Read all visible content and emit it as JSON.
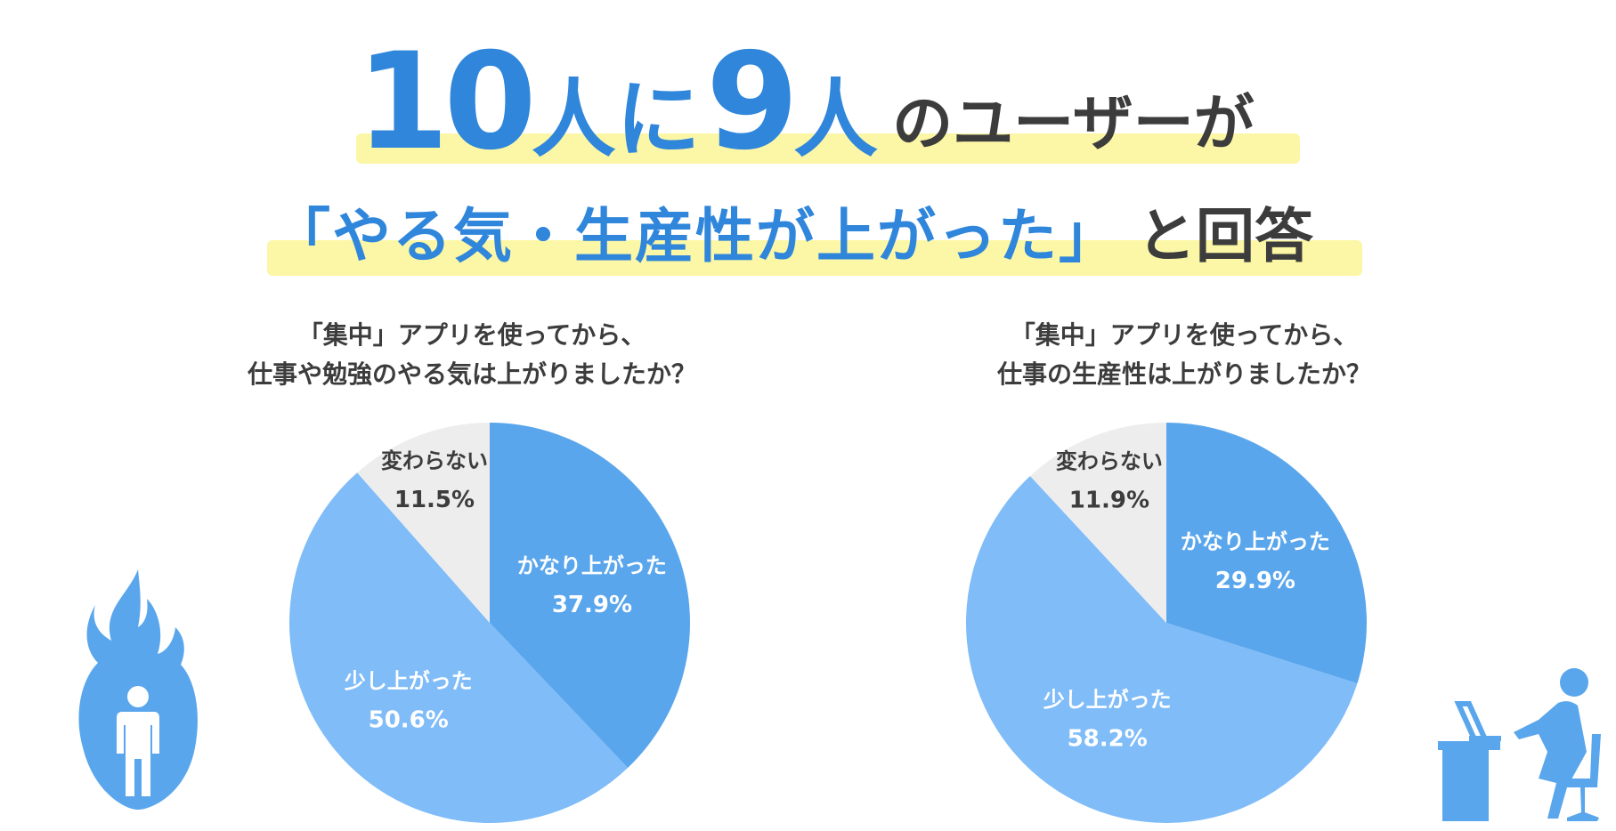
{
  "headline": {
    "num1": "10",
    "kanji1": "人に",
    "num2": "9",
    "kanji2": "人",
    "tail1": "のユーザーが",
    "quote": "「やる気・生産性が上がった」",
    "tail2": "と回答"
  },
  "colors": {
    "accent": "#2f86db",
    "slice_high": "#5aa6ec",
    "slice_mid": "#7fbcf8",
    "slice_none": "#ededee",
    "highlight": "#fbf7a6",
    "text_dark": "#3c3c3c",
    "icon_blue": "#5aa6ec"
  },
  "icons": [
    "fire-person-icon",
    "desk-worker-icon"
  ],
  "chart_data": [
    {
      "type": "pie",
      "title_line1": "「集中」アプリを使ってから、",
      "title_line2": "仕事や勉強のやる気は上がりましたか？",
      "slices": [
        {
          "label": "かなり上がった",
          "value": 37.9,
          "value_label": "37.9%"
        },
        {
          "label": "少し上がった",
          "value": 50.6,
          "value_label": "50.6%"
        },
        {
          "label": "変わらない",
          "value": 11.5,
          "value_label": "11.5%"
        }
      ]
    },
    {
      "type": "pie",
      "title_line1": "「集中」アプリを使ってから、",
      "title_line2": "仕事の生産性は上がりましたか？",
      "slices": [
        {
          "label": "かなり上がった",
          "value": 29.9,
          "value_label": "29.9%"
        },
        {
          "label": "少し上がった",
          "value": 58.2,
          "value_label": "58.2%"
        },
        {
          "label": "変わらない",
          "value": 11.9,
          "value_label": "11.9%"
        }
      ]
    }
  ]
}
